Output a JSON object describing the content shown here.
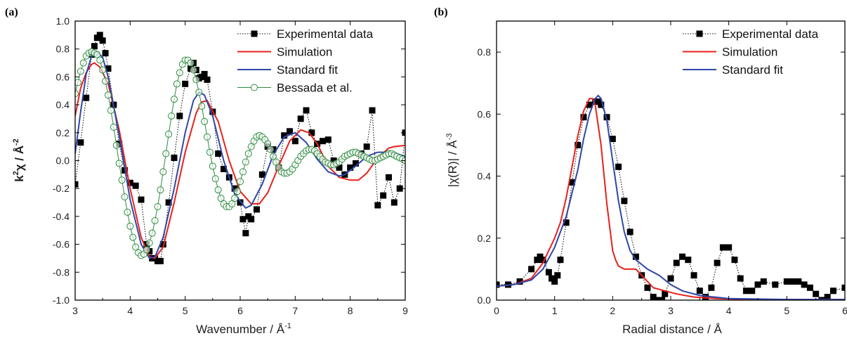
{
  "chart_data": [
    {
      "panel": "(a)",
      "type": "line",
      "xlabel": "Wavenumber / Å",
      "xlabel_sup": "-1",
      "ylabel_main": "k",
      "ylabel_sup1": "2",
      "ylabel_mid": "χ / Å",
      "ylabel_sup2": "-2",
      "xlim": [
        3,
        9
      ],
      "ylim": [
        -1.0,
        1.0
      ],
      "xticks": [
        "3",
        "4",
        "5",
        "6",
        "7",
        "8",
        "9"
      ],
      "yticks": [
        "-1.0",
        "-0.8",
        "-0.6",
        "-0.4",
        "-0.2",
        "0.0",
        "0.2",
        "0.4",
        "0.6",
        "0.8",
        "1.0"
      ],
      "legend_position": "top-right",
      "grid": false,
      "series": [
        {
          "name": "Experimental data",
          "style": "square-dotted",
          "color": "#000000",
          "x": [
            3.0,
            3.1,
            3.2,
            3.3,
            3.35,
            3.4,
            3.45,
            3.5,
            3.55,
            3.6,
            3.7,
            3.8,
            3.9,
            4.0,
            4.1,
            4.2,
            4.3,
            4.35,
            4.4,
            4.45,
            4.5,
            4.55,
            4.6,
            4.7,
            4.8,
            4.9,
            5.0,
            5.1,
            5.15,
            5.2,
            5.25,
            5.3,
            5.35,
            5.4,
            5.5,
            5.6,
            5.7,
            5.8,
            5.9,
            6.0,
            6.05,
            6.1,
            6.15,
            6.2,
            6.3,
            6.4,
            6.5,
            6.6,
            6.7,
            6.8,
            6.9,
            7.0,
            7.1,
            7.2,
            7.3,
            7.4,
            7.5,
            7.6,
            7.7,
            7.8,
            7.9,
            8.0,
            8.1,
            8.2,
            8.3,
            8.4,
            8.5,
            8.6,
            8.7,
            8.8,
            8.9,
            9.0
          ],
          "y": [
            -0.17,
            0.13,
            0.45,
            0.76,
            0.82,
            0.88,
            0.9,
            0.86,
            0.77,
            0.66,
            0.4,
            0.12,
            -0.07,
            -0.16,
            -0.18,
            -0.28,
            -0.6,
            -0.65,
            -0.7,
            -0.7,
            -0.72,
            -0.72,
            -0.6,
            -0.3,
            0.02,
            0.32,
            0.55,
            0.66,
            0.7,
            0.65,
            0.59,
            0.6,
            0.62,
            0.58,
            0.35,
            0.05,
            -0.06,
            -0.12,
            -0.2,
            -0.3,
            -0.42,
            -0.52,
            -0.4,
            -0.42,
            -0.35,
            -0.1,
            0.1,
            0.08,
            -0.05,
            0.18,
            0.21,
            0.14,
            0.3,
            0.36,
            0.2,
            0.12,
            0.14,
            0.15,
            0.0,
            -0.05,
            -0.1,
            -0.05,
            -0.02,
            0.05,
            0.1,
            0.36,
            -0.32,
            -0.25,
            -0.12,
            -0.3,
            -0.2,
            0.2
          ]
        },
        {
          "name": "Simulation",
          "style": "line",
          "color": "#e8201c",
          "x": [
            3.0,
            3.1,
            3.2,
            3.3,
            3.35,
            3.45,
            3.6,
            3.8,
            4.0,
            4.2,
            4.35,
            4.45,
            4.6,
            4.8,
            5.0,
            5.2,
            5.3,
            5.4,
            5.6,
            5.8,
            6.0,
            6.2,
            6.35,
            6.5,
            6.7,
            6.9,
            7.1,
            7.25,
            7.4,
            7.6,
            7.8,
            8.0,
            8.15,
            8.3,
            8.5,
            8.7,
            8.8,
            9.0
          ],
          "y": [
            0.32,
            0.52,
            0.63,
            0.69,
            0.7,
            0.67,
            0.55,
            0.22,
            -0.2,
            -0.55,
            -0.69,
            -0.7,
            -0.62,
            -0.3,
            0.06,
            0.34,
            0.42,
            0.43,
            0.28,
            0.0,
            -0.22,
            -0.31,
            -0.31,
            -0.23,
            -0.04,
            0.14,
            0.22,
            0.2,
            0.12,
            -0.04,
            -0.12,
            -0.14,
            -0.14,
            -0.09,
            0.02,
            0.09,
            0.1,
            0.11
          ]
        },
        {
          "name": "Standard fit",
          "style": "line",
          "color": "#2f47a8",
          "x": [
            3.0,
            3.1,
            3.2,
            3.3,
            3.4,
            3.5,
            3.6,
            3.8,
            4.0,
            4.2,
            4.35,
            4.45,
            4.6,
            4.8,
            5.0,
            5.15,
            5.25,
            5.35,
            5.5,
            5.7,
            5.9,
            6.1,
            6.2,
            6.4,
            6.6,
            6.8,
            7.0,
            7.2,
            7.4,
            7.6,
            7.8,
            7.9,
            8.1,
            8.3,
            8.5,
            8.7,
            8.85,
            9.0
          ],
          "y": [
            0.05,
            0.35,
            0.62,
            0.75,
            0.78,
            0.74,
            0.6,
            0.18,
            -0.28,
            -0.6,
            -0.7,
            -0.69,
            -0.55,
            -0.2,
            0.2,
            0.43,
            0.49,
            0.47,
            0.32,
            0.0,
            -0.24,
            -0.34,
            -0.32,
            -0.17,
            0.04,
            0.17,
            0.2,
            0.13,
            0.01,
            -0.08,
            -0.11,
            -0.1,
            -0.04,
            0.03,
            0.06,
            0.06,
            0.05,
            0.03
          ]
        },
        {
          "name": "Bessada et al.",
          "style": "circle-line",
          "color": "#2e8b3e",
          "x": [
            3.0,
            3.05,
            3.1,
            3.15,
            3.2,
            3.25,
            3.3,
            3.35,
            3.4,
            3.45,
            3.5,
            3.55,
            3.6,
            3.65,
            3.7,
            3.75,
            3.8,
            3.85,
            3.9,
            3.95,
            4.0,
            4.05,
            4.1,
            4.15,
            4.2,
            4.25,
            4.3,
            4.35,
            4.4,
            4.45,
            4.5,
            4.55,
            4.6,
            4.65,
            4.7,
            4.75,
            4.8,
            4.85,
            4.9,
            4.95,
            5.0,
            5.05,
            5.1,
            5.15,
            5.2,
            5.25,
            5.3,
            5.35,
            5.4,
            5.45,
            5.5,
            5.55,
            5.6,
            5.65,
            5.7,
            5.75,
            5.8,
            5.85,
            5.9,
            5.95,
            6.0,
            6.05,
            6.1,
            6.15,
            6.2,
            6.25,
            6.3,
            6.35,
            6.4,
            6.45,
            6.5,
            6.55,
            6.6,
            6.65,
            6.7,
            6.75,
            6.8,
            6.85,
            6.9,
            6.95,
            7.0,
            7.05,
            7.1,
            7.15,
            7.2,
            7.25,
            7.3,
            7.35,
            7.4,
            7.45,
            7.5,
            7.55,
            7.6,
            7.65,
            7.7,
            7.75,
            7.8,
            7.85,
            7.9,
            7.95,
            8.0,
            8.05,
            8.1,
            8.15,
            8.2,
            8.25,
            8.3,
            8.35,
            8.4,
            8.45,
            8.5,
            8.55,
            8.6,
            8.65,
            8.7,
            8.75,
            8.8,
            8.85,
            8.9,
            8.95,
            9.0
          ],
          "y": [
            0.48,
            0.56,
            0.64,
            0.7,
            0.75,
            0.77,
            0.78,
            0.77,
            0.76,
            0.72,
            0.65,
            0.57,
            0.47,
            0.36,
            0.24,
            0.11,
            -0.02,
            -0.14,
            -0.26,
            -0.37,
            -0.47,
            -0.55,
            -0.62,
            -0.66,
            -0.68,
            -0.67,
            -0.64,
            -0.59,
            -0.52,
            -0.43,
            -0.33,
            -0.21,
            -0.08,
            0.05,
            0.19,
            0.32,
            0.44,
            0.55,
            0.63,
            0.69,
            0.72,
            0.72,
            0.7,
            0.65,
            0.58,
            0.49,
            0.39,
            0.28,
            0.17,
            0.06,
            -0.04,
            -0.13,
            -0.21,
            -0.27,
            -0.31,
            -0.33,
            -0.33,
            -0.31,
            -0.27,
            -0.22,
            -0.15,
            -0.08,
            -0.01,
            0.05,
            0.1,
            0.14,
            0.17,
            0.18,
            0.17,
            0.15,
            0.12,
            0.08,
            0.03,
            -0.01,
            -0.05,
            -0.08,
            -0.09,
            -0.09,
            -0.08,
            -0.06,
            -0.03,
            0.0,
            0.03,
            0.05,
            0.07,
            0.08,
            0.08,
            0.07,
            0.05,
            0.03,
            0.01,
            -0.01,
            -0.02,
            -0.03,
            -0.03,
            -0.02,
            -0.01,
            0.01,
            0.03,
            0.04,
            0.05,
            0.06,
            0.06,
            0.05,
            0.04,
            0.03,
            0.02,
            0.01,
            0.0,
            0.0,
            0.01,
            0.02,
            0.03,
            0.04,
            0.05,
            0.05,
            0.04,
            0.03,
            0.02,
            0.01,
            0.0
          ]
        }
      ]
    },
    {
      "panel": "(b)",
      "type": "line",
      "xlabel": "Radial distance  / Å",
      "ylabel_main": "|χ(R)| / Å",
      "ylabel_sup": "-3",
      "xlim": [
        0,
        6
      ],
      "ylim": [
        0,
        0.9
      ],
      "xticks": [
        "0",
        "1",
        "2",
        "3",
        "4",
        "5",
        "6"
      ],
      "yticks": [
        "0.0",
        "0.2",
        "0.4",
        "0.6",
        "0.8"
      ],
      "legend_position": "top-right",
      "grid": false,
      "series": [
        {
          "name": "Experimental data",
          "style": "square-dotted",
          "color": "#000000",
          "x": [
            0.0,
            0.2,
            0.4,
            0.6,
            0.7,
            0.75,
            0.8,
            0.9,
            0.95,
            1.0,
            1.05,
            1.1,
            1.2,
            1.3,
            1.4,
            1.5,
            1.6,
            1.7,
            1.75,
            1.8,
            1.9,
            2.0,
            2.1,
            2.2,
            2.3,
            2.4,
            2.5,
            2.6,
            2.7,
            2.8,
            2.85,
            2.9,
            3.0,
            3.1,
            3.2,
            3.3,
            3.4,
            3.5,
            3.6,
            3.7,
            3.8,
            3.9,
            4.0,
            4.1,
            4.2,
            4.3,
            4.4,
            4.5,
            4.6,
            4.8,
            5.0,
            5.1,
            5.2,
            5.3,
            5.4,
            5.5,
            5.6,
            5.7,
            5.8,
            6.0
          ],
          "y": [
            0.05,
            0.05,
            0.06,
            0.1,
            0.13,
            0.14,
            0.13,
            0.09,
            0.07,
            0.06,
            0.08,
            0.13,
            0.25,
            0.38,
            0.5,
            0.59,
            0.63,
            0.64,
            0.64,
            0.63,
            0.59,
            0.52,
            0.43,
            0.32,
            0.22,
            0.14,
            0.08,
            0.04,
            0.01,
            0.0,
            0.0,
            0.02,
            0.07,
            0.12,
            0.14,
            0.13,
            0.08,
            0.03,
            0.01,
            0.04,
            0.12,
            0.17,
            0.17,
            0.13,
            0.07,
            0.03,
            0.03,
            0.05,
            0.06,
            0.05,
            0.06,
            0.06,
            0.06,
            0.05,
            0.04,
            0.02,
            0.0,
            0.01,
            0.03,
            0.04
          ]
        },
        {
          "name": "Simulation",
          "style": "line",
          "color": "#e8201c",
          "x": [
            0.0,
            0.3,
            0.6,
            0.8,
            1.0,
            1.1,
            1.2,
            1.3,
            1.4,
            1.5,
            1.6,
            1.65,
            1.7,
            1.8,
            1.9,
            2.0,
            2.05,
            2.1,
            2.15,
            2.2,
            2.3,
            2.4,
            2.5,
            2.7,
            2.9,
            3.1,
            3.4,
            3.8,
            4.2,
            5.0,
            6.0
          ],
          "y": [
            0.045,
            0.05,
            0.07,
            0.12,
            0.2,
            0.25,
            0.33,
            0.43,
            0.53,
            0.61,
            0.65,
            0.65,
            0.63,
            0.5,
            0.31,
            0.16,
            0.13,
            0.11,
            0.105,
            0.1,
            0.1,
            0.1,
            0.08,
            0.04,
            0.03,
            0.02,
            0.01,
            0.005,
            0.003,
            0.002,
            0.002
          ]
        },
        {
          "name": "Standard fit",
          "style": "line",
          "color": "#2f47a8",
          "x": [
            0.0,
            0.3,
            0.6,
            0.8,
            1.0,
            1.2,
            1.4,
            1.5,
            1.6,
            1.7,
            1.75,
            1.8,
            1.9,
            2.0,
            2.1,
            2.2,
            2.3,
            2.4,
            2.6,
            2.8,
            3.0,
            3.2,
            3.5,
            4.0,
            5.0,
            6.0
          ],
          "y": [
            0.045,
            0.05,
            0.065,
            0.1,
            0.17,
            0.27,
            0.42,
            0.52,
            0.6,
            0.65,
            0.66,
            0.65,
            0.58,
            0.45,
            0.32,
            0.22,
            0.16,
            0.13,
            0.1,
            0.08,
            0.05,
            0.03,
            0.015,
            0.005,
            0.002,
            0.002
          ]
        }
      ]
    }
  ]
}
